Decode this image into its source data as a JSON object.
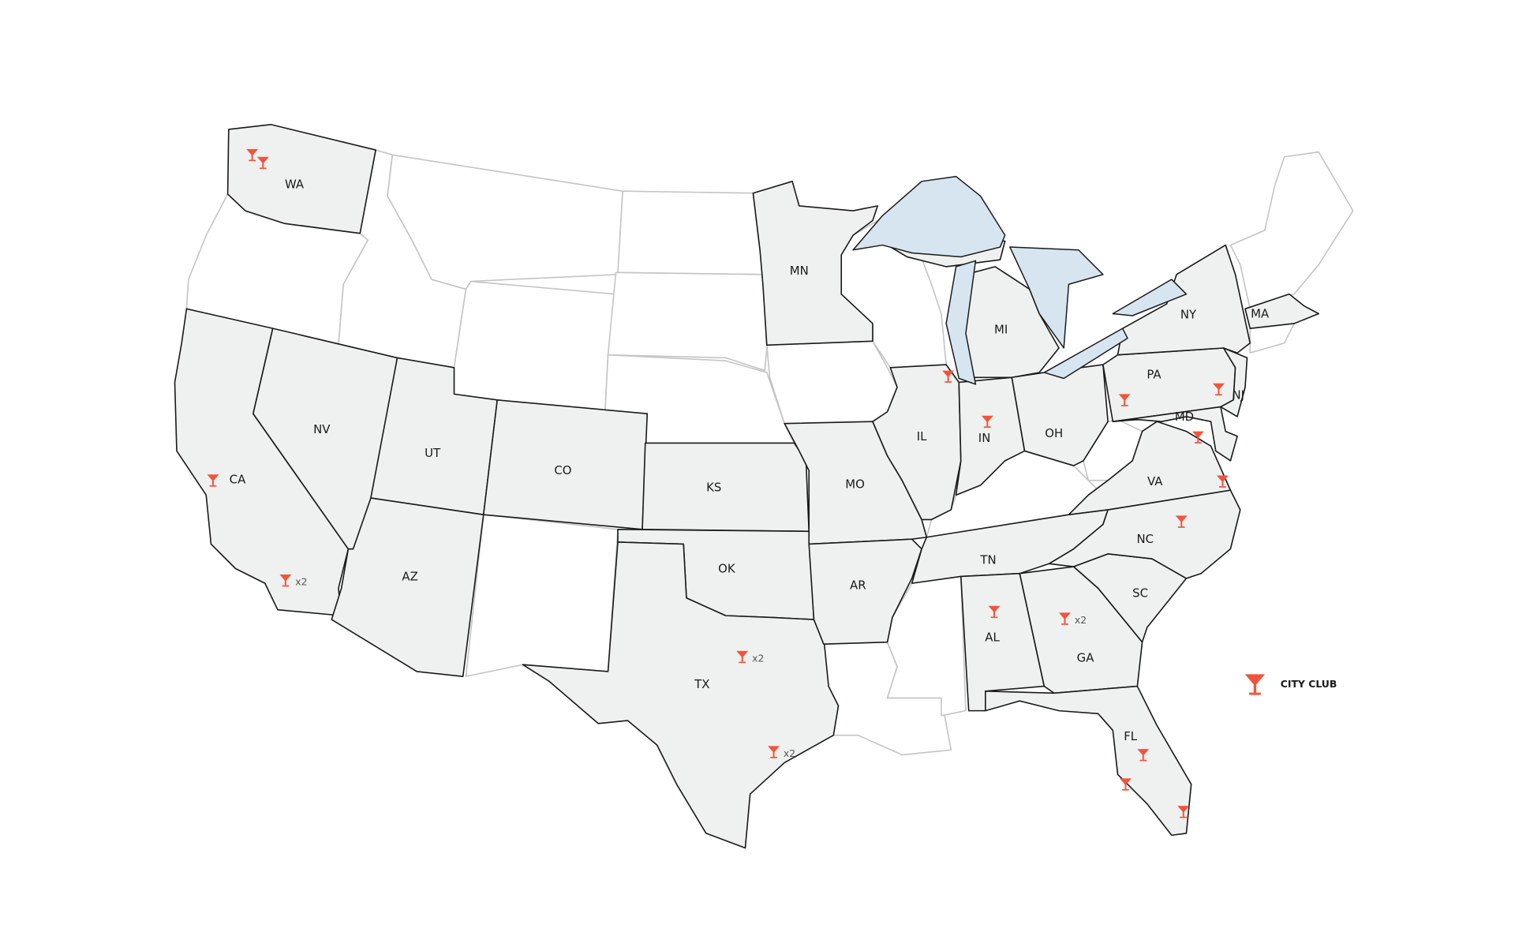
{
  "legend": {
    "label": "CITY CLUB",
    "icon": "martini-glass-icon",
    "color": "#f2543b"
  },
  "colors": {
    "highlighted_state": "#eff0f0",
    "other_state": "#ffffff",
    "lakes": "#d6e5ef",
    "marker": "#f2543b"
  },
  "highlighted_states": [
    "WA",
    "CA",
    "NV",
    "UT",
    "AZ",
    "CO",
    "KS",
    "OK",
    "TX",
    "MN",
    "MO",
    "AR",
    "IL",
    "IN",
    "MI",
    "OH",
    "TN",
    "AL",
    "GA",
    "SC",
    "NC",
    "FL",
    "VA",
    "PA",
    "NY",
    "NJ",
    "MD",
    "MA"
  ],
  "state_labels": {
    "WA": "WA",
    "CA": "CA",
    "NV": "NV",
    "UT": "UT",
    "AZ": "AZ",
    "CO": "CO",
    "KS": "KS",
    "OK": "OK",
    "TX": "TX",
    "MN": "MN",
    "MO": "MO",
    "AR": "AR",
    "IL": "IL",
    "IN": "IN",
    "MI": "MI",
    "OH": "OH",
    "TN": "TN",
    "AL": "AL",
    "GA": "GA",
    "SC": "SC",
    "NC": "NC",
    "FL": "FL",
    "VA": "VA",
    "PA": "PA",
    "NY": "NY",
    "NJ": "NJ",
    "MD": "MD",
    "MA": "MA"
  },
  "markers": [
    {
      "state": "WA",
      "count": 1
    },
    {
      "state": "WA",
      "count": 1
    },
    {
      "state": "CA",
      "count": 1
    },
    {
      "state": "CA",
      "count": 2,
      "count_label": "x2"
    },
    {
      "state": "TX",
      "count": 2,
      "count_label": "x2"
    },
    {
      "state": "TX",
      "count": 2,
      "count_label": "x2"
    },
    {
      "state": "IL",
      "count": 1
    },
    {
      "state": "IN",
      "count": 1
    },
    {
      "state": "PA",
      "count": 1
    },
    {
      "state": "NJ",
      "count": 1
    },
    {
      "state": "MD",
      "count": 1
    },
    {
      "state": "VA",
      "count": 1
    },
    {
      "state": "NC",
      "count": 1
    },
    {
      "state": "AL",
      "count": 1
    },
    {
      "state": "GA",
      "count": 2,
      "count_label": "x2"
    },
    {
      "state": "FL",
      "count": 1
    },
    {
      "state": "FL",
      "count": 1
    },
    {
      "state": "FL",
      "count": 1
    }
  ]
}
